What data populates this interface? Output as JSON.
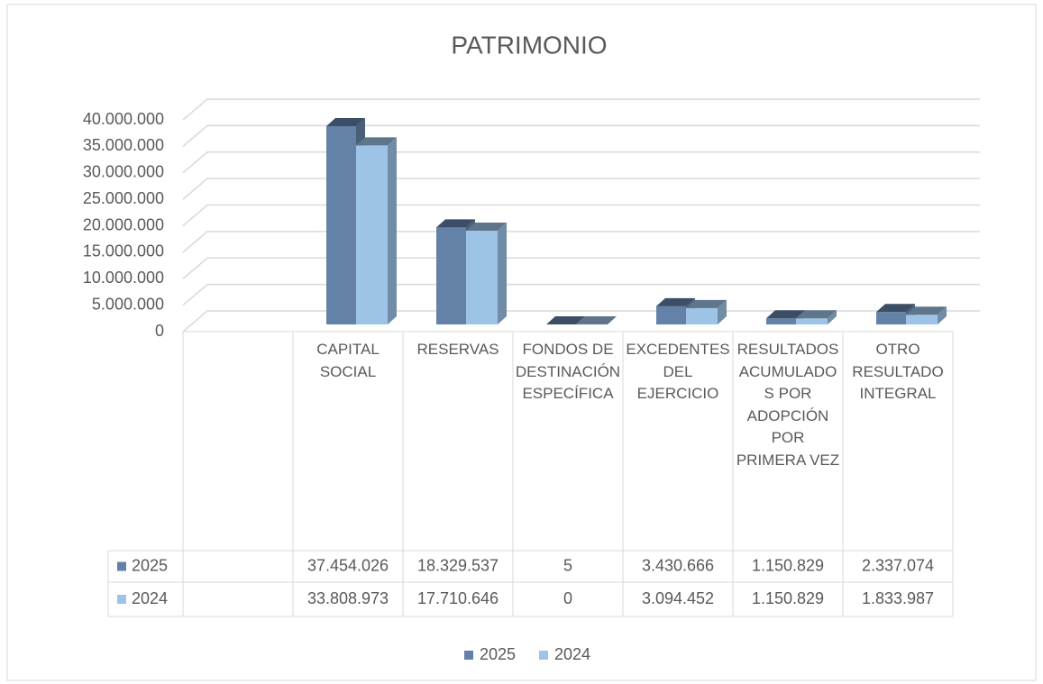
{
  "chart_data": {
    "type": "bar3d",
    "title": "PATRIMONIO",
    "categories": [
      null,
      "CAPITAL SOCIAL",
      "RESERVAS",
      "FONDOS DE DESTINACIÓN ESPECÍFICA",
      "EXCEDENTES DEL EJERCICIO",
      "RESULTADOS ACUMULADOS POR ADOPCIÓN POR PRIMERA VEZ",
      "OTRO RESULTADO INTEGRAL"
    ],
    "series": [
      {
        "name": "2025",
        "color": "#6482a8",
        "values": [
          null,
          37454026,
          18329537,
          5,
          3430666,
          1150829,
          2337074
        ],
        "value_labels": [
          null,
          "37.454.026",
          "18.329.537",
          "5",
          "3.430.666",
          "1.150.829",
          "2.337.074"
        ]
      },
      {
        "name": "2024",
        "color": "#9dc3e6",
        "values": [
          null,
          33808973,
          17710646,
          0,
          3094452,
          1150829,
          1833987
        ],
        "value_labels": [
          null,
          "33.808.973",
          "17.710.646",
          "0",
          "3.094.452",
          "1.150.829",
          "1.833.987"
        ]
      }
    ],
    "ylim": [
      0,
      40000000
    ],
    "yticks": [
      0,
      {
        "value": 5000000,
        "label": "5.000.000"
      },
      {
        "value": 10000000,
        "label": "10.000.000"
      },
      {
        "value": 15000000,
        "label": "15.000.000"
      },
      {
        "value": 20000000,
        "label": "20.000.000"
      },
      {
        "value": 25000000,
        "label": "25.000.000"
      },
      {
        "value": 30000000,
        "label": "30.000.000"
      },
      {
        "value": 35000000,
        "label": "35.000.000"
      },
      {
        "value": 40000000,
        "label": "40.000.000"
      }
    ],
    "grid": true,
    "legend": "bottom",
    "data_table": true
  }
}
